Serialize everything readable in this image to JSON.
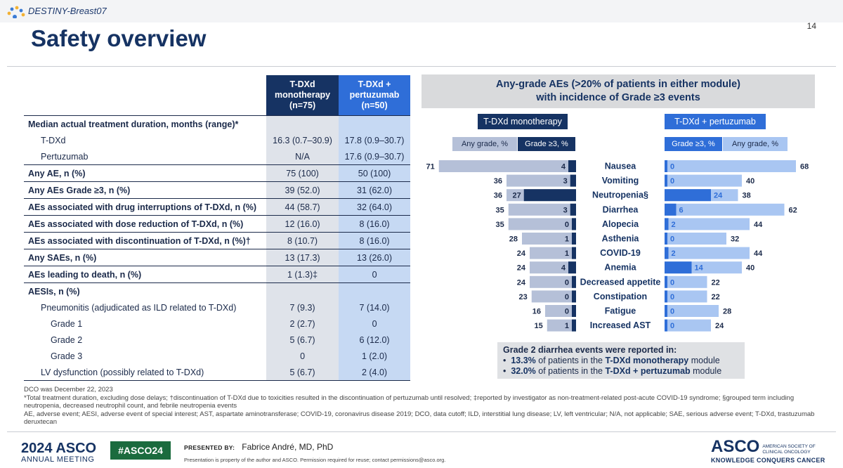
{
  "header": {
    "study_logo_text": "DESTINY-Breast07",
    "page_number": "14"
  },
  "title": "Safety overview",
  "table": {
    "col1": [
      "T-DXd",
      "monotherapy",
      "(n=75)"
    ],
    "col2": [
      "T-DXd +",
      "pertuzumab",
      "(n=50)"
    ],
    "rows": [
      {
        "label": "Median actual treatment duration, months (range)*",
        "v1": "",
        "v2": ""
      },
      {
        "label": "T-DXd",
        "v1": "16.3 (0.7–30.9)",
        "v2": "17.8 (0.9–30.7)"
      },
      {
        "label": "Pertuzumab",
        "v1": "N/A",
        "v2": "17.6 (0.9–30.7)"
      },
      {
        "label": "Any AE, n (%)",
        "v1": "75 (100)",
        "v2": "50 (100)"
      },
      {
        "label": "Any AEs Grade ≥3, n (%)",
        "v1": "39 (52.0)",
        "v2": "31 (62.0)"
      },
      {
        "label": "AEs associated with drug interruptions of T-DXd, n (%)",
        "v1": "44 (58.7)",
        "v2": "32 (64.0)"
      },
      {
        "label": "AEs associated with dose reduction of T-DXd, n (%)",
        "v1": "12 (16.0)",
        "v2": "8 (16.0)"
      },
      {
        "label": "AEs associated with discontinuation of T-DXd, n (%)†",
        "v1": "8 (10.7)",
        "v2": "8 (16.0)"
      },
      {
        "label": "Any SAEs, n (%)",
        "v1": "13 (17.3)",
        "v2": "13 (26.0)"
      },
      {
        "label": "AEs leading to death, n (%)",
        "v1": "1 (1.3)‡",
        "v2": "0"
      },
      {
        "label": "AESIs, n (%)",
        "v1": "",
        "v2": ""
      },
      {
        "label": "Pneumonitis (adjudicated as ILD related to T-DXd)",
        "v1": "7 (9.3)",
        "v2": "7 (14.0)"
      },
      {
        "label": "Grade 1",
        "v1": "2 (2.7)",
        "v2": "0"
      },
      {
        "label": "Grade 2",
        "v1": "5 (6.7)",
        "v2": "6 (12.0)"
      },
      {
        "label": "Grade 3",
        "v1": "0",
        "v2": "1 (2.0)"
      },
      {
        "label": "LV dysfunction (possibly related to T-DXd)",
        "v1": "5 (6.7)",
        "v2": "2 (4.0)"
      }
    ]
  },
  "chart_header": [
    "Any-grade AEs (>20% of patients in either module)",
    "with incidence of Grade ≥3 events"
  ],
  "chart_labels": {
    "left_module": "T-DXd monotherapy",
    "right_module": "T-DXd + pertuzumab",
    "left_any": "Any grade, %",
    "left_g3": "Grade ≥3, %",
    "right_g3": "Grade ≥3, %",
    "right_any": "Any grade, %"
  },
  "chart_data": {
    "type": "bar",
    "categories": [
      "Nausea",
      "Vomiting",
      "Neutropenia§",
      "Diarrhea",
      "Alopecia",
      "Asthenia",
      "COVID-19",
      "Anemia",
      "Decreased appetite",
      "Constipation",
      "Fatigue",
      "Increased AST"
    ],
    "series": [
      {
        "name": "T-DXd monotherapy Any grade, %",
        "values": [
          71,
          36,
          36,
          35,
          35,
          28,
          24,
          24,
          24,
          23,
          16,
          15
        ]
      },
      {
        "name": "T-DXd monotherapy Grade ≥3, %",
        "values": [
          4,
          3,
          27,
          3,
          0,
          1,
          1,
          4,
          0,
          0,
          0,
          1
        ]
      },
      {
        "name": "T-DXd + pertuzumab Grade ≥3, %",
        "values": [
          0,
          0,
          24,
          6,
          2,
          0,
          2,
          14,
          0,
          0,
          0,
          0
        ]
      },
      {
        "name": "T-DXd + pertuzumab Any grade, %",
        "values": [
          68,
          40,
          38,
          62,
          44,
          32,
          44,
          40,
          22,
          22,
          28,
          24
        ]
      }
    ],
    "colors": {
      "left_any": "#b5c0d8",
      "left_g3": "#163363",
      "right_any": "#a9c6f2",
      "right_g3": "#2f6ed8"
    }
  },
  "note": {
    "title": "Grade 2 diarrhea events were reported in:",
    "items": [
      {
        "pct": "13.3%",
        "mid": " of patients in the ",
        "mod": "T-DXd monotherapy",
        "end": " module"
      },
      {
        "pct": "32.0%",
        "mid": " of patients in the ",
        "mod": "T-DXd + pertuzumab",
        "end": " module"
      }
    ]
  },
  "footnotes": [
    "DCO was December 22, 2023",
    "*Total treatment duration, excluding dose delays; †discontinuation of T-DXd due to toxicities resulted in the discontinuation of pertuzumab until resolved; ‡reported by investigator as non-treatment-related post-acute COVID-19 syndrome; §grouped term including neutropenia, decreased neutrophil count, and febrile neutropenia events",
    "AE, adverse event; AESI, adverse event of special interest; AST, aspartate aminotransferase; COVID-19, coronavirus disease 2019; DCO, data cutoff; ILD, interstitial lung disease; LV, left ventricular; N/A, not applicable; SAE, serious adverse event; T-DXd, trastuzumab deruxtecan"
  ],
  "footer": {
    "meeting_year": "2024",
    "meeting_org": "ASCO",
    "meeting_name": "ANNUAL MEETING",
    "hashtag": "#ASCO24",
    "presented_by": "PRESENTED BY:",
    "presenter": "Fabrice André, MD, PhD",
    "property": "Presentation is property of the author and ASCO. Permission required for reuse; contact permissions@asco.org.",
    "org_logo": "ASCO",
    "org_name": [
      "AMERICAN SOCIETY OF",
      "CLINICAL ONCOLOGY"
    ],
    "tagline": "KNOWLEDGE CONQUERS CANCER"
  }
}
